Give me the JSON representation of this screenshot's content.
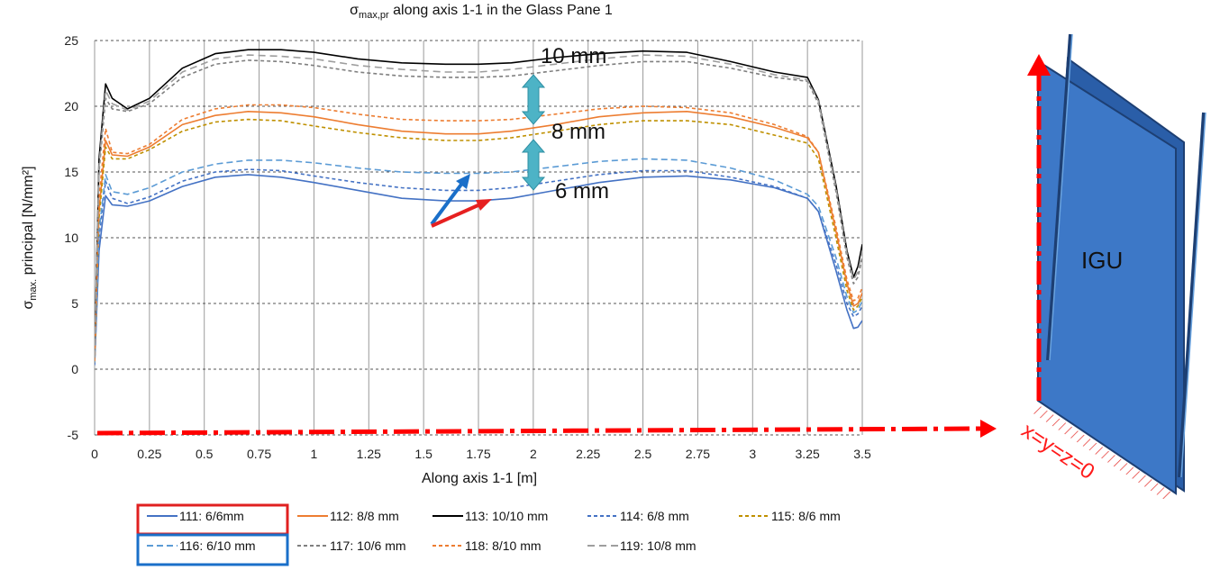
{
  "chart_data": {
    "type": "line",
    "title_main": "σ",
    "title_sub": "max,pr",
    "title_rest": " along axis 1-1 in the Glass Pane 1",
    "ylabel_main": "σ",
    "ylabel_sub": "max.",
    "ylabel_rest": " principal [N/mm²]",
    "xlabel": "Along axis 1-1 [m]",
    "xlim": [
      0,
      3.5
    ],
    "ylim": [
      -5,
      25
    ],
    "x_ticks": [
      "0",
      "0.25",
      "0.5",
      "0.75",
      "1",
      "1.25",
      "1.5",
      "1.75",
      "2",
      "2.25",
      "2.5",
      "2.75",
      "3",
      "3.25",
      "3.5"
    ],
    "y_ticks": [
      "-5",
      "0",
      "5",
      "10",
      "15",
      "20",
      "25"
    ],
    "grid": true,
    "annotations": [
      "10 mm",
      "8 mm",
      "6 mm"
    ],
    "diagram_label": "IGU",
    "origin_label": "x=y=z=0",
    "legend_placement": "bottom",
    "series": [
      {
        "name": "111: 6/6mm",
        "color": "#4472C4",
        "dash": "solid",
        "x": [
          0,
          0.02,
          0.05,
          0.08,
          0.15,
          0.25,
          0.4,
          0.55,
          0.7,
          0.85,
          1.0,
          1.2,
          1.4,
          1.6,
          1.75,
          1.9,
          2.1,
          2.3,
          2.5,
          2.7,
          2.9,
          3.1,
          3.25,
          3.3,
          3.38,
          3.43,
          3.46,
          3.48,
          3.5
        ],
        "y": [
          0.3,
          9.0,
          13.2,
          12.5,
          12.4,
          12.8,
          13.9,
          14.6,
          14.8,
          14.6,
          14.2,
          13.6,
          13.0,
          12.8,
          12.8,
          13.0,
          13.6,
          14.2,
          14.6,
          14.7,
          14.4,
          13.8,
          13.0,
          12.0,
          7.5,
          4.5,
          3.1,
          3.2,
          3.7
        ]
      },
      {
        "name": "112: 8/8 mm",
        "color": "#ED7D31",
        "dash": "solid",
        "x": [
          0,
          0.02,
          0.05,
          0.08,
          0.15,
          0.25,
          0.4,
          0.55,
          0.7,
          0.85,
          1.0,
          1.2,
          1.4,
          1.6,
          1.75,
          1.9,
          2.1,
          2.3,
          2.5,
          2.7,
          2.9,
          3.1,
          3.25,
          3.3,
          3.38,
          3.43,
          3.46,
          3.48,
          3.5
        ],
        "y": [
          0.5,
          12.0,
          17.4,
          16.3,
          16.2,
          16.9,
          18.6,
          19.3,
          19.6,
          19.5,
          19.2,
          18.6,
          18.1,
          17.9,
          17.9,
          18.1,
          18.6,
          19.2,
          19.5,
          19.6,
          19.2,
          18.4,
          17.6,
          16.5,
          10.5,
          6.5,
          4.8,
          5.0,
          5.8
        ]
      },
      {
        "name": "113: 10/10 mm",
        "color": "#000000",
        "dash": "solid",
        "x": [
          0,
          0.02,
          0.05,
          0.08,
          0.15,
          0.25,
          0.4,
          0.55,
          0.7,
          0.85,
          1.0,
          1.2,
          1.4,
          1.6,
          1.75,
          1.9,
          2.1,
          2.3,
          2.5,
          2.7,
          2.9,
          3.1,
          3.25,
          3.3,
          3.38,
          3.43,
          3.46,
          3.48,
          3.5
        ],
        "y": [
          1.0,
          16.0,
          21.7,
          20.6,
          19.8,
          20.6,
          22.9,
          24.0,
          24.3,
          24.3,
          24.1,
          23.6,
          23.3,
          23.2,
          23.2,
          23.3,
          23.7,
          24.0,
          24.2,
          24.1,
          23.4,
          22.6,
          22.2,
          20.5,
          14.0,
          9.0,
          7.0,
          7.8,
          9.5
        ]
      },
      {
        "name": "114: 6/8 mm",
        "color": "#4472C4",
        "dash": "4,3",
        "x": [
          0,
          0.02,
          0.05,
          0.08,
          0.15,
          0.25,
          0.4,
          0.55,
          0.7,
          0.85,
          1.0,
          1.2,
          1.4,
          1.6,
          1.75,
          1.9,
          2.1,
          2.3,
          2.5,
          2.7,
          2.9,
          3.1,
          3.25,
          3.3,
          3.38,
          3.43,
          3.46,
          3.48,
          3.5
        ],
        "y": [
          0.4,
          10.0,
          14.3,
          13.0,
          12.6,
          13.1,
          14.3,
          15.0,
          15.2,
          15.1,
          14.7,
          14.2,
          13.8,
          13.6,
          13.6,
          13.8,
          14.3,
          14.8,
          15.1,
          15.1,
          14.6,
          13.9,
          13.0,
          12.0,
          8.0,
          5.0,
          4.0,
          4.2,
          4.8
        ]
      },
      {
        "name": "115: 8/6 mm",
        "color": "#BF9000",
        "dash": "4,3",
        "x": [
          0,
          0.02,
          0.05,
          0.08,
          0.15,
          0.25,
          0.4,
          0.55,
          0.7,
          0.85,
          1.0,
          1.2,
          1.4,
          1.6,
          1.75,
          1.9,
          2.1,
          2.3,
          2.5,
          2.7,
          2.9,
          3.1,
          3.25,
          3.3,
          3.38,
          3.43,
          3.46,
          3.48,
          3.5
        ],
        "y": [
          0.5,
          11.5,
          16.9,
          16.0,
          16.0,
          16.7,
          18.1,
          18.8,
          19.0,
          18.9,
          18.5,
          18.0,
          17.6,
          17.4,
          17.4,
          17.6,
          18.1,
          18.6,
          18.9,
          18.9,
          18.6,
          17.8,
          17.2,
          16.0,
          10.0,
          6.0,
          4.5,
          4.8,
          5.5
        ]
      },
      {
        "name": "116: 6/10 mm",
        "color": "#5B9BD5",
        "dash": "7,4",
        "x": [
          0,
          0.02,
          0.05,
          0.08,
          0.15,
          0.25,
          0.4,
          0.55,
          0.7,
          0.85,
          1.0,
          1.2,
          1.4,
          1.6,
          1.75,
          1.9,
          2.1,
          2.3,
          2.5,
          2.7,
          2.9,
          3.1,
          3.25,
          3.3,
          3.38,
          3.43,
          3.46,
          3.48,
          3.5
        ],
        "y": [
          0.5,
          10.5,
          14.8,
          13.5,
          13.3,
          13.8,
          15.0,
          15.6,
          15.9,
          15.9,
          15.7,
          15.3,
          15.0,
          14.9,
          14.9,
          15.0,
          15.4,
          15.8,
          16.0,
          15.9,
          15.3,
          14.4,
          13.3,
          12.4,
          8.5,
          5.5,
          4.3,
          4.5,
          5.2
        ]
      },
      {
        "name": "117: 10/6 mm",
        "color": "#7F7F7F",
        "dash": "4,3",
        "x": [
          0,
          0.02,
          0.05,
          0.08,
          0.15,
          0.25,
          0.4,
          0.55,
          0.7,
          0.85,
          1.0,
          1.2,
          1.4,
          1.6,
          1.75,
          1.9,
          2.1,
          2.3,
          2.5,
          2.7,
          2.9,
          3.1,
          3.25,
          3.3,
          3.38,
          3.43,
          3.46,
          3.48,
          3.5
        ],
        "y": [
          0.8,
          15.0,
          20.6,
          19.8,
          19.6,
          20.2,
          22.2,
          23.2,
          23.5,
          23.4,
          23.1,
          22.6,
          22.3,
          22.2,
          22.2,
          22.3,
          22.7,
          23.1,
          23.4,
          23.4,
          22.9,
          22.2,
          21.9,
          20.2,
          13.5,
          8.5,
          6.5,
          7.0,
          8.5
        ]
      },
      {
        "name": "118: 8/10 mm",
        "color": "#ED7D31",
        "dash": "4,3",
        "x": [
          0,
          0.02,
          0.05,
          0.08,
          0.15,
          0.25,
          0.4,
          0.55,
          0.7,
          0.85,
          1.0,
          1.2,
          1.4,
          1.6,
          1.75,
          1.9,
          2.1,
          2.3,
          2.5,
          2.7,
          2.9,
          3.1,
          3.25,
          3.3,
          3.38,
          3.43,
          3.46,
          3.48,
          3.5
        ],
        "y": [
          0.6,
          13.0,
          18.3,
          16.5,
          16.4,
          17.1,
          19.0,
          19.8,
          20.1,
          20.1,
          19.9,
          19.4,
          19.0,
          18.9,
          18.9,
          19.0,
          19.4,
          19.8,
          20.0,
          19.9,
          19.5,
          18.6,
          17.7,
          16.5,
          10.8,
          6.8,
          5.2,
          5.4,
          6.2
        ]
      },
      {
        "name": "119: 10/8 mm",
        "color": "#9E9E9E",
        "dash": "8,5",
        "x": [
          0,
          0.02,
          0.05,
          0.08,
          0.15,
          0.25,
          0.4,
          0.55,
          0.7,
          0.85,
          1.0,
          1.2,
          1.4,
          1.6,
          1.75,
          1.9,
          2.1,
          2.3,
          2.5,
          2.7,
          2.9,
          3.1,
          3.25,
          3.3,
          3.38,
          3.43,
          3.46,
          3.48,
          3.5
        ],
        "y": [
          0.9,
          15.5,
          21.2,
          20.2,
          19.7,
          20.4,
          22.6,
          23.6,
          23.9,
          23.8,
          23.6,
          23.1,
          22.8,
          22.6,
          22.6,
          22.8,
          23.2,
          23.6,
          23.9,
          23.8,
          23.2,
          22.4,
          22.0,
          20.4,
          13.8,
          8.8,
          6.8,
          7.4,
          9.0
        ]
      }
    ]
  }
}
